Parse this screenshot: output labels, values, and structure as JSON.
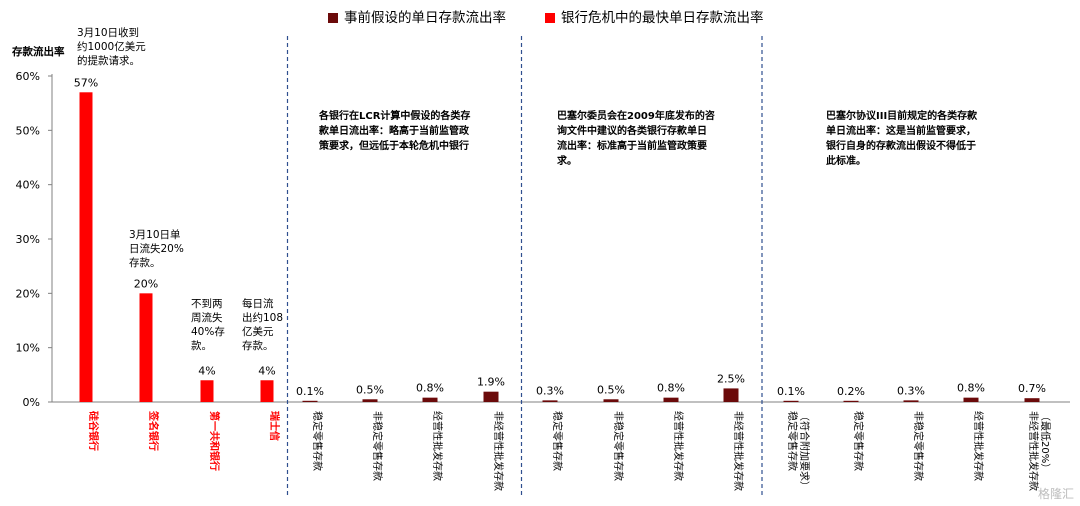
{
  "legend": {
    "assumed_label": "事前假设的单日存款流出率",
    "crisis_label": "银行危机中的最快单日存款流出率"
  },
  "colors": {
    "assumed": "#6b0a0a",
    "crisis": "#ff0000",
    "axis": "#808080",
    "divider": "#2f4f8f"
  },
  "notes": {
    "svb": "3月10日收到\n约1000亿美元\n的提款请求。",
    "signature": "3月10日单\n日流失20%\n存款。",
    "frc": "不到两\n周流失\n40%存\n款。",
    "cs": "每日流\n出约108\n亿美元\n存款。",
    "lcr": "各银行在LCR计算中假设的各类存\n款单日流出率：略高于当前监管政\n策要求，但远低于本轮危机中银行",
    "basel2009": "巴塞尔委员会在2009年底发布的咨\n询文件中建议的各类银行存款单日\n流出率：标准高于当前监管政策要\n求。",
    "basel3": "巴塞尔协议III目前规定的各类存款\n单日流出率：这是当前监管要求，\n银行自身的存款流出假设不得低于\n此标准。"
  },
  "watermark": "格隆汇",
  "chart_data": {
    "type": "bar",
    "ylabel": "存款流出率",
    "ylim": [
      0,
      60
    ],
    "yticks": [
      0,
      10,
      20,
      30,
      40,
      50,
      60
    ],
    "ytick_labels": [
      "0%",
      "10%",
      "20%",
      "30%",
      "40%",
      "50%",
      "60%"
    ],
    "grid": false,
    "legend_position": "top",
    "categories": [
      "硅谷银行",
      "签名银行",
      "第一共和银行",
      "瑞士信",
      "稳定零售存款",
      "非稳定零售存款",
      "经营性批发存款",
      "非经营性批发存款",
      "稳定零售存款",
      "非稳定零售存款",
      "经营性批发存款",
      "非经营性批发存款",
      "稳定零售存款\n（符合附加要求）",
      "稳定零售存款",
      "非稳定零售存款",
      "经营性批发存款",
      "非经营性批发存款\n（最低20%）"
    ],
    "values": [
      57,
      20,
      4,
      4,
      0.1,
      0.5,
      0.8,
      1.9,
      0.3,
      0.5,
      0.8,
      2.5,
      0.1,
      0.2,
      0.3,
      0.8,
      0.7
    ],
    "value_labels": [
      "57%",
      "20%",
      "4%",
      "4%",
      "0.1%",
      "0.5%",
      "0.8%",
      "1.9%",
      "0.3%",
      "0.5%",
      "0.8%",
      "2.5%",
      "0.1%",
      "0.2%",
      "0.3%",
      "0.8%",
      "0.7%"
    ],
    "bar_series": [
      "crisis",
      "crisis",
      "crisis",
      "crisis",
      "assumed",
      "assumed",
      "assumed",
      "assumed",
      "assumed",
      "assumed",
      "assumed",
      "assumed",
      "assumed",
      "assumed",
      "assumed",
      "assumed",
      "assumed"
    ],
    "series": [
      {
        "name": "事前假设的单日存款流出率",
        "values": [
          null,
          null,
          null,
          null,
          0.1,
          0.5,
          0.8,
          1.9,
          0.3,
          0.5,
          0.8,
          2.5,
          0.1,
          0.2,
          0.3,
          0.8,
          0.7
        ]
      },
      {
        "name": "银行危机中的最快单日存款流出率",
        "values": [
          57,
          20,
          4,
          4,
          null,
          null,
          null,
          null,
          null,
          null,
          null,
          null,
          null,
          null,
          null,
          null,
          null
        ]
      }
    ],
    "groups": [
      {
        "label": "",
        "start": 0,
        "end": 3
      },
      {
        "label": "",
        "start": 4,
        "end": 7
      },
      {
        "label": "",
        "start": 8,
        "end": 11
      },
      {
        "label": "",
        "start": 12,
        "end": 16
      }
    ]
  }
}
